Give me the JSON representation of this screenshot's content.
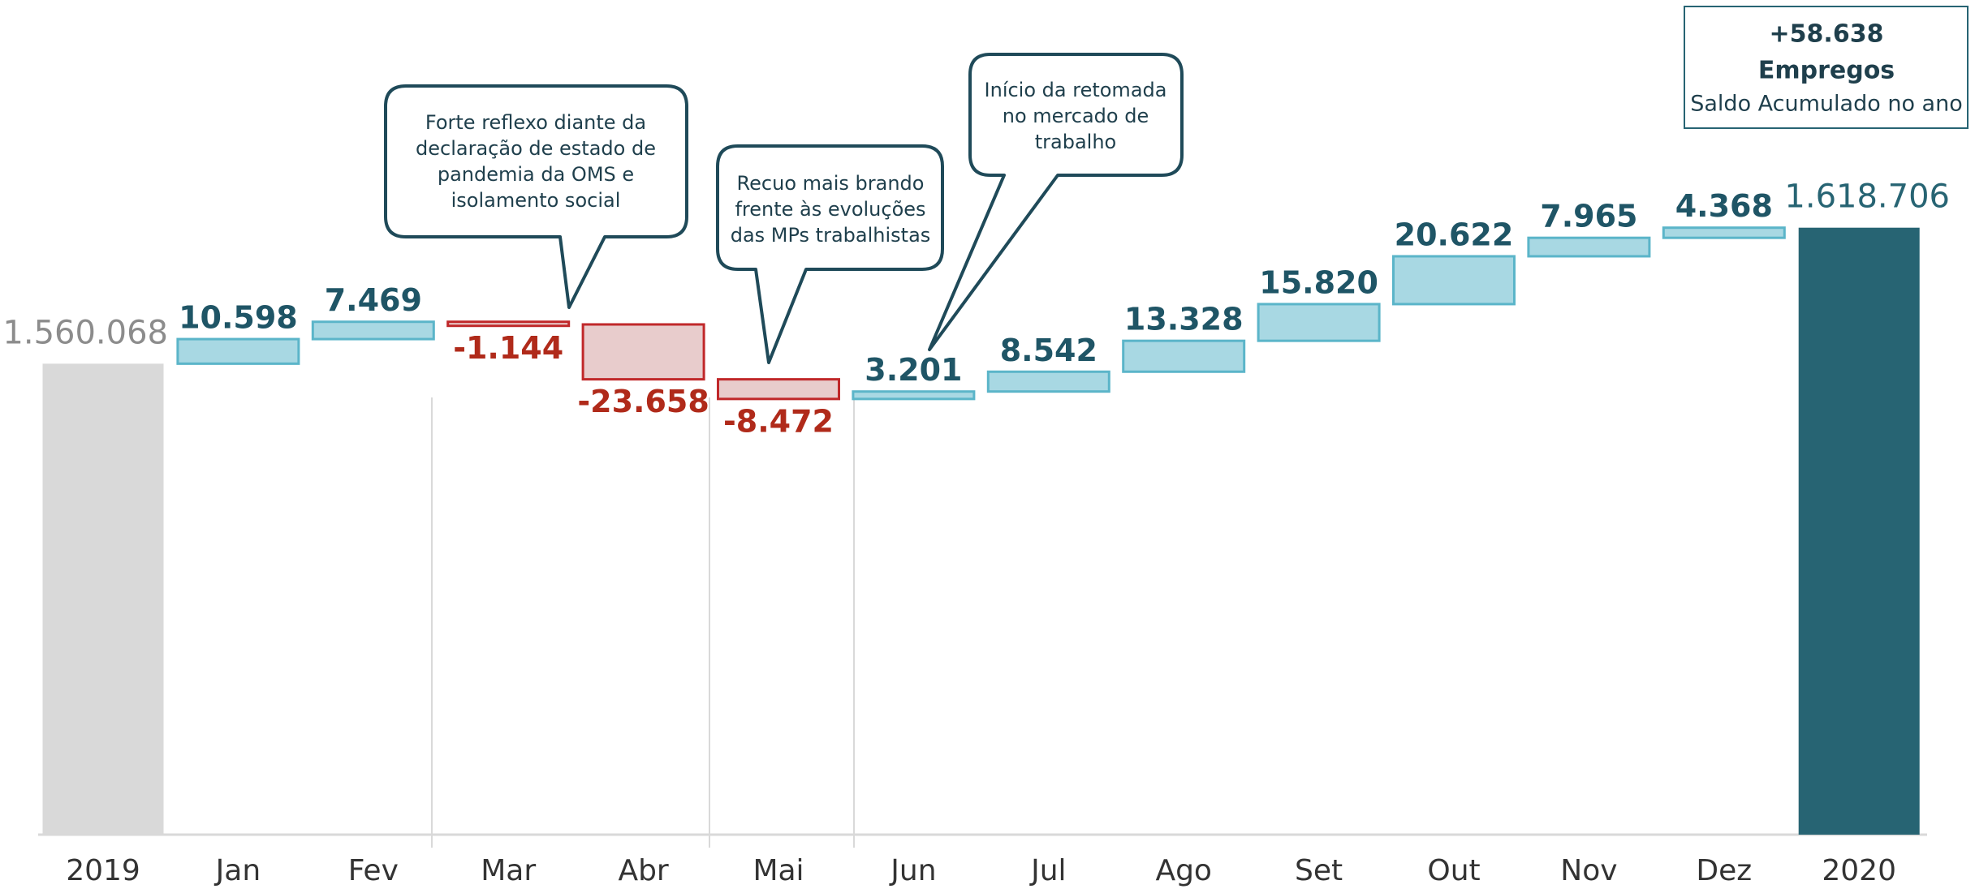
{
  "chart_data": {
    "type": "waterfall",
    "categories": [
      "2019",
      "Jan",
      "Fev",
      "Mar",
      "Abr",
      "Mai",
      "Jun",
      "Jul",
      "Ago",
      "Set",
      "Out",
      "Nov",
      "Dez",
      "2020"
    ],
    "measure": [
      "absolute",
      "relative",
      "relative",
      "relative",
      "relative",
      "relative",
      "relative",
      "relative",
      "relative",
      "relative",
      "relative",
      "relative",
      "relative",
      "total"
    ],
    "values": [
      1560068,
      10598,
      7469,
      -1144,
      -23658,
      -8472,
      3201,
      8542,
      13328,
      15820,
      20622,
      7965,
      4368,
      1618706
    ],
    "value_labels": [
      "1.560.068",
      "10.598",
      "7.469",
      "-1.144",
      "-23.658",
      "-8.472",
      "3.201",
      "8.542",
      "13.328",
      "15.820",
      "20.622",
      "7.965",
      "4.368",
      "1.618.706"
    ],
    "ylim": [
      1357000,
      1620000
    ],
    "colors": {
      "absolute": "#d9d9d9",
      "total": "#276473",
      "increase": "#a8d8e3",
      "increase_edge": "#5bb5c9",
      "decrease": "#e8cccc",
      "decrease_edge": "#c0282a"
    },
    "label_colors": {
      "absolute": "#8c8c8c",
      "total": "#276473",
      "increase": "#1f5566",
      "decrease": "#b02a1a"
    },
    "summary": {
      "value": "+58.638",
      "unit": "Empregos",
      "caption": "Saldo Acumulado no ano"
    },
    "annotations": [
      {
        "lines": [
          "Forte reflexo diante da",
          "declaração de estado de",
          "pandemia da OMS e",
          "isolamento social"
        ]
      },
      {
        "lines": [
          "Recuo mais brando",
          "frente às evoluções",
          "das MPs trabalhistas"
        ]
      },
      {
        "lines": [
          "Início da retomada",
          "no mercado de",
          "trabalho"
        ]
      }
    ]
  }
}
